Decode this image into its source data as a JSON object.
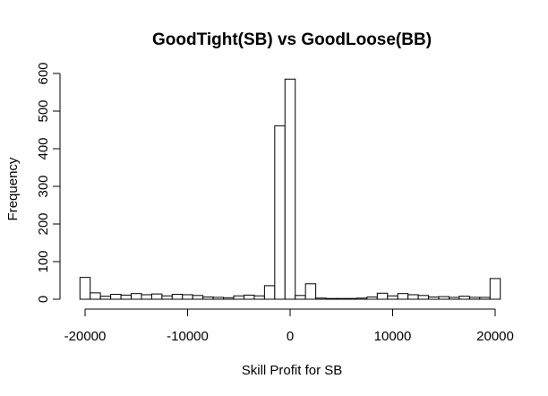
{
  "chart_data": {
    "type": "bar",
    "title": "GoodTight(SB) vs GoodLoose(BB)",
    "xlabel": "Skill Profit for SB",
    "ylabel": "Frequency",
    "xlim": [
      -20000,
      20000
    ],
    "ylim": [
      0,
      600
    ],
    "x_ticks": [
      -20000,
      -10000,
      0,
      10000,
      20000
    ],
    "x_tick_labels": [
      "-20000",
      "-10000",
      "0",
      "10000",
      "20000"
    ],
    "y_ticks": [
      0,
      100,
      200,
      300,
      400,
      500,
      600
    ],
    "y_tick_labels": [
      "0",
      "100",
      "200",
      "300",
      "400",
      "500",
      "600"
    ],
    "bin_width": 1000,
    "bin_start": -20000,
    "values": [
      58,
      17,
      8,
      13,
      11,
      15,
      12,
      14,
      9,
      13,
      12,
      10,
      6,
      5,
      4,
      9,
      11,
      9,
      36,
      461,
      585,
      10,
      41,
      3,
      2,
      2,
      2,
      3,
      6,
      16,
      9,
      15,
      12,
      10,
      6,
      7,
      5,
      8,
      5,
      5,
      55
    ],
    "grid": false,
    "legend": "none"
  }
}
